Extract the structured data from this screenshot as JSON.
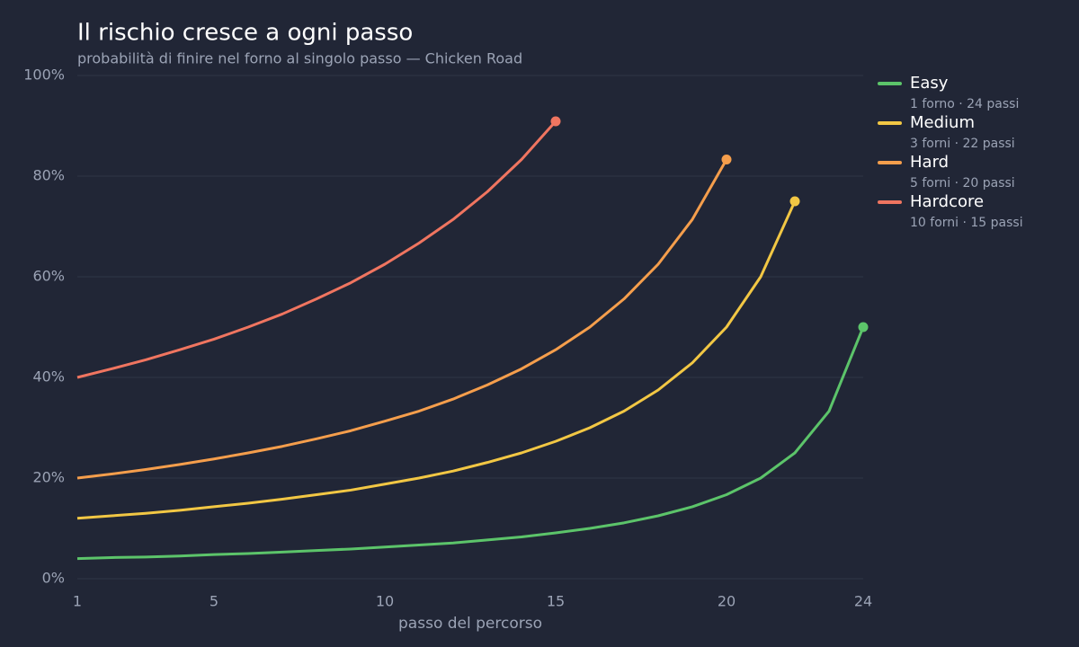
{
  "chart_data": {
    "type": "line",
    "title": "Il rischio cresce a ogni passo",
    "subtitle": "probabilità di finire nel forno al singolo passo — Chicken Road",
    "x_label": "passo del percorso",
    "xlim": [
      1,
      24
    ],
    "xticks": [
      1,
      5,
      10,
      15,
      20,
      24
    ],
    "ylim": [
      0,
      100
    ],
    "yticks": [
      {
        "value": 0,
        "label": "0%"
      },
      {
        "value": 20,
        "label": "20%"
      },
      {
        "value": 40,
        "label": "40%"
      },
      {
        "value": 60,
        "label": "60%"
      },
      {
        "value": 80,
        "label": "80%"
      },
      {
        "value": 100,
        "label": "100%"
      }
    ],
    "grid": true,
    "legend": "right",
    "series": [
      {
        "name": "Easy",
        "description": "1 forno · 24 passi",
        "color": "#5cc46a",
        "x": [
          1,
          2,
          3,
          4,
          5,
          6,
          7,
          8,
          9,
          10,
          11,
          12,
          13,
          14,
          15,
          16,
          17,
          18,
          19,
          20,
          21,
          22,
          23,
          24
        ],
        "values": [
          4.0,
          4.2,
          4.3,
          4.5,
          4.8,
          5.0,
          5.3,
          5.6,
          5.9,
          6.3,
          6.7,
          7.1,
          7.7,
          8.3,
          9.1,
          10.0,
          11.1,
          12.5,
          14.3,
          16.7,
          20.0,
          25.0,
          33.3,
          50.0
        ]
      },
      {
        "name": "Medium",
        "description": "3 forni · 22 passi",
        "color": "#f2c744",
        "x": [
          1,
          2,
          3,
          4,
          5,
          6,
          7,
          8,
          9,
          10,
          11,
          12,
          13,
          14,
          15,
          16,
          17,
          18,
          19,
          20,
          21,
          22
        ],
        "values": [
          12.0,
          12.5,
          13.0,
          13.6,
          14.3,
          15.0,
          15.8,
          16.7,
          17.6,
          18.8,
          20.0,
          21.4,
          23.1,
          25.0,
          27.3,
          30.0,
          33.3,
          37.5,
          42.9,
          50.0,
          60.0,
          75.0
        ]
      },
      {
        "name": "Hard",
        "description": "5 forni · 20 passi",
        "color": "#f59e4c",
        "x": [
          1,
          2,
          3,
          4,
          5,
          6,
          7,
          8,
          9,
          10,
          11,
          12,
          13,
          14,
          15,
          16,
          17,
          18,
          19,
          20
        ],
        "values": [
          20.0,
          20.8,
          21.7,
          22.7,
          23.8,
          25.0,
          26.3,
          27.8,
          29.4,
          31.3,
          33.3,
          35.7,
          38.5,
          41.7,
          45.5,
          50.0,
          55.6,
          62.5,
          71.4,
          83.3
        ]
      },
      {
        "name": "Hardcore",
        "description": "10 forni · 15 passi",
        "color": "#f07560",
        "x": [
          1,
          2,
          3,
          4,
          5,
          6,
          7,
          8,
          9,
          10,
          11,
          12,
          13,
          14,
          15
        ],
        "values": [
          40.0,
          41.7,
          43.5,
          45.5,
          47.6,
          50.0,
          52.6,
          55.6,
          58.8,
          62.5,
          66.7,
          71.4,
          76.9,
          83.3,
          90.9
        ]
      }
    ]
  }
}
